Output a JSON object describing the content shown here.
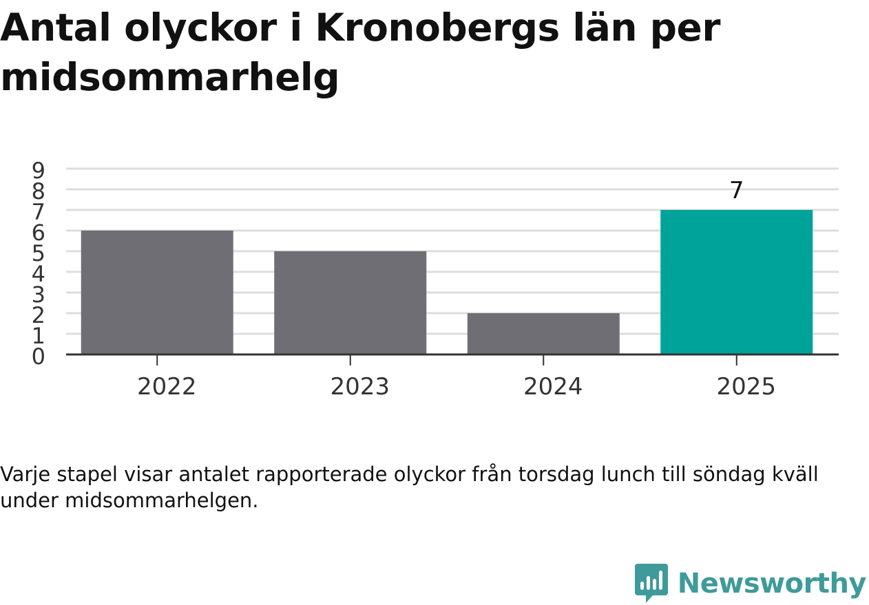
{
  "title": "Antal olyckor i Kronobergs län per midsommarhelg",
  "caption": "Varje stapel visar antalet rapporterade olyckor från torsdag lunch till söndag kväll under midsommarhelgen.",
  "brand": {
    "name": "Newsworthy",
    "logo_icon": "newsworthy-logo-icon",
    "color": "#3e9b99"
  },
  "chart_data": {
    "type": "bar",
    "categories": [
      "2022",
      "2023",
      "2024",
      "2025"
    ],
    "values": [
      6,
      5,
      2,
      7
    ],
    "ylim": [
      0,
      9
    ],
    "yticks": [
      0,
      1,
      2,
      3,
      4,
      5,
      6,
      7,
      8,
      9
    ],
    "grid": true,
    "data_labels": [
      {
        "category": "2025",
        "text": "7"
      }
    ],
    "colors": {
      "default": "#6f6e74",
      "highlight": "#00a39a",
      "highlight_category": "2025",
      "grid": "#dddddd",
      "axis": "#333333"
    },
    "xlabel": "",
    "ylabel": ""
  }
}
